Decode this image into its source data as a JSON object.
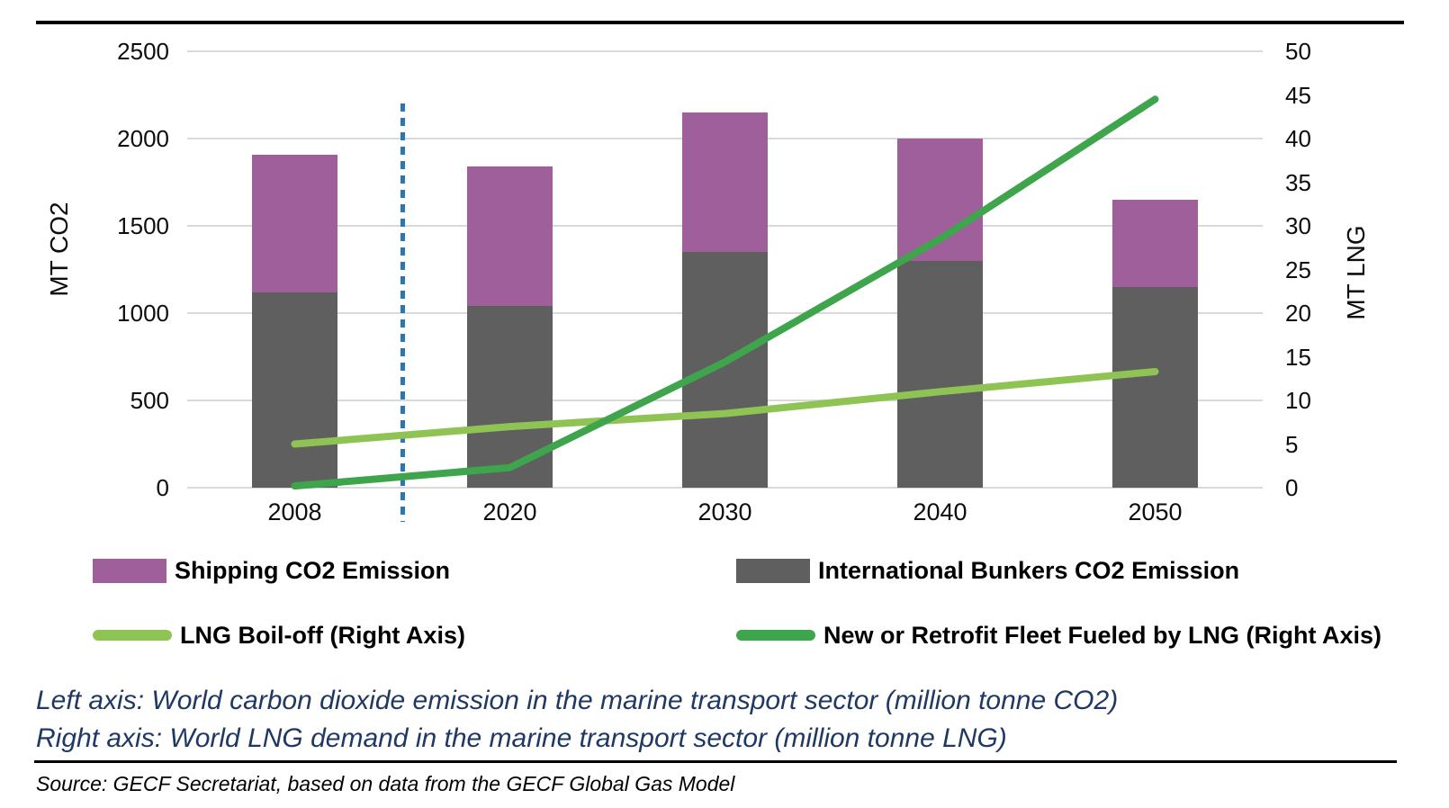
{
  "chart_data": {
    "type": "combo: stacked bar + line, dual axis",
    "categories": [
      "2008",
      "2020",
      "2030",
      "2040",
      "2050"
    ],
    "left_axis": {
      "label": "MT CO2",
      "min": 0,
      "max": 2500,
      "tick_step": 500,
      "ticks": [
        0,
        500,
        1000,
        1500,
        2000,
        2500
      ]
    },
    "right_axis": {
      "label": "MT LNG",
      "min": 0,
      "max": 50,
      "tick_step": 5,
      "ticks": [
        0,
        5,
        10,
        15,
        20,
        25,
        30,
        35,
        40,
        45,
        50
      ]
    },
    "bar_series": [
      {
        "name": "International Bunkers CO2 Emission",
        "axis": "left",
        "color": "#5F5F5F",
        "values": [
          1120,
          1040,
          1350,
          1300,
          1150
        ]
      },
      {
        "name": "Shipping CO2 Emission",
        "axis": "left",
        "color": "#9E5F9A",
        "values": [
          790,
          800,
          800,
          700,
          500
        ],
        "stacked_totals": [
          1910,
          1840,
          2150,
          2000,
          1650
        ]
      }
    ],
    "line_series": [
      {
        "name": "LNG Boil-off (Right Axis)",
        "axis": "right",
        "color": "#8FC455",
        "values": [
          5,
          7,
          8.5,
          11,
          13.3
        ]
      },
      {
        "name": "New or Retrofit Fleet Fueled by LNG (Right Axis)",
        "axis": "right",
        "color": "#3EA54D",
        "values": [
          0.2,
          2.3,
          14.4,
          28.5,
          44.5
        ]
      }
    ],
    "annotations": {
      "dashed_vertical_divider": {
        "color": "#2E75B6",
        "style": "dotted",
        "position": "between 2008 and 2020"
      }
    },
    "grid": true,
    "gridline_color": "#D9D9D9",
    "legend_position": "bottom, two columns"
  },
  "legend": {
    "items": [
      {
        "label": "Shipping CO2 Emission",
        "swatch": "bar",
        "color": "#9E5F9A"
      },
      {
        "label": "International Bunkers CO2 Emission",
        "swatch": "bar",
        "color": "#5F5F5F"
      },
      {
        "label": "LNG Boil-off (Right Axis)",
        "swatch": "line",
        "color": "#8FC455"
      },
      {
        "label": "New or Retrofit Fleet Fueled by LNG (Right Axis)",
        "swatch": "line",
        "color": "#3EA54D"
      }
    ]
  },
  "captions": {
    "left_axis_note": "Left axis: World carbon dioxide emission in the marine transport sector (million tonne CO2)",
    "right_axis_note": "Right axis: World LNG demand in the marine transport sector (million tonne LNG)",
    "note_color": "#1F3864"
  },
  "source": {
    "text": "Source: GECF Secretariat, based on data from the GECF Global Gas Model"
  }
}
